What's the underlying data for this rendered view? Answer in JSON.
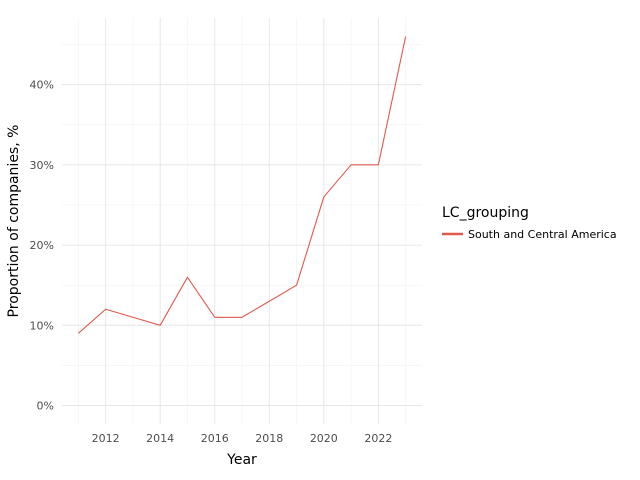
{
  "chart_data": {
    "type": "line",
    "xlabel": "Year",
    "ylabel": "Proportion of companies, %",
    "x_ticks": [
      2012,
      2014,
      2016,
      2018,
      2020,
      2022
    ],
    "x_tick_labels": [
      "2012",
      "2014",
      "2016",
      "2018",
      "2020",
      "2022"
    ],
    "y_ticks": [
      0,
      10,
      20,
      30,
      40
    ],
    "y_tick_labels": [
      "0%",
      "10%",
      "20%",
      "30%",
      "40%"
    ],
    "xlim": [
      2010.4,
      2023.6
    ],
    "ylim": [
      -2.3,
      48.3
    ],
    "grid": true,
    "legend": {
      "title": "LC_grouping",
      "placement": "right"
    },
    "series": [
      {
        "name": "South and Central America",
        "color": "#e05a4e",
        "x": [
          2011,
          2012,
          2013,
          2014,
          2015,
          2016,
          2017,
          2018,
          2019,
          2020,
          2021,
          2022,
          2023
        ],
        "y": [
          9,
          12,
          11,
          10,
          16,
          11,
          11,
          13,
          15,
          26,
          30,
          30,
          46
        ]
      }
    ]
  }
}
